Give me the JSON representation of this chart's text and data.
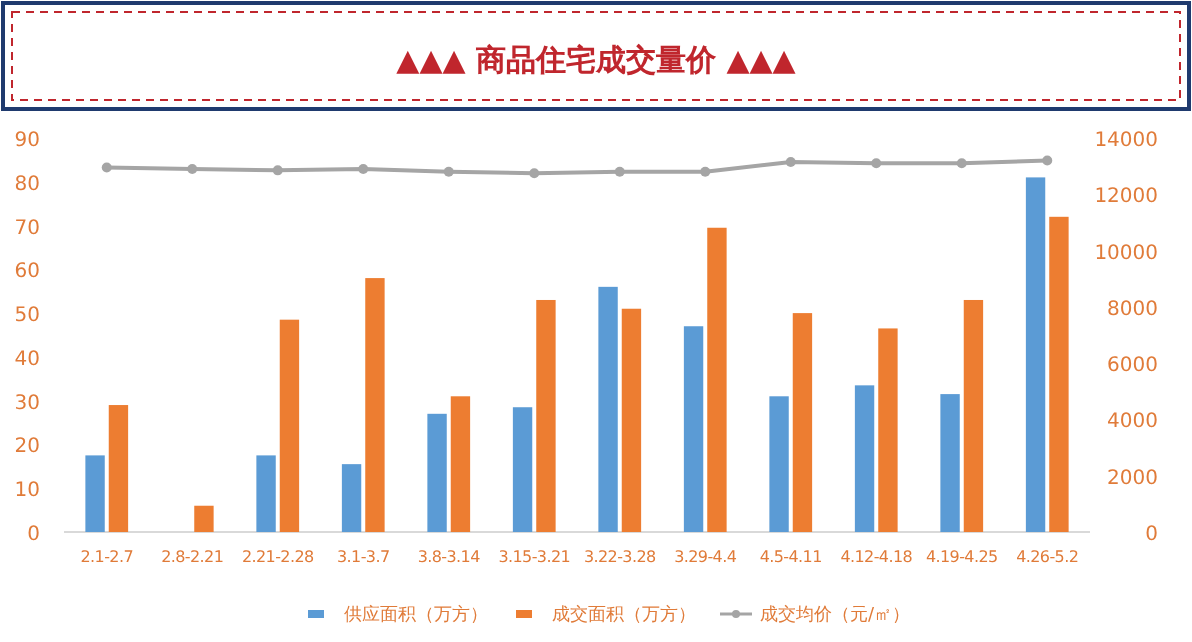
{
  "chart_data": {
    "type": "bar",
    "title": "▲▲▲  商品住宅成交量价  ▲▲▲",
    "categories": [
      "2.1-2.7",
      "2.8-2.21",
      "2.21-2.28",
      "3.1-3.7",
      "3.8-3.14",
      "3.15-3.21",
      "3.22-3.28",
      "3.29-4.4",
      "4.5-4.11",
      "4.12-4.18",
      "4.19-4.25",
      "4.26-5.2"
    ],
    "series": [
      {
        "name": "供应面积（万方）",
        "color": "#5b9bd5",
        "values": [
          17.5,
          null,
          17.5,
          15.5,
          27,
          28.5,
          56,
          47,
          31,
          33.5,
          31.5,
          81
        ]
      },
      {
        "name": "成交面积（万方）",
        "color": "#ed7d31",
        "values": [
          29,
          6,
          48.5,
          58,
          31,
          53,
          51,
          69.5,
          50,
          46.5,
          53,
          72
        ]
      },
      {
        "name": "成交均价（元/㎡）",
        "color": "#a5a5a5",
        "type": "line",
        "axis": "y2",
        "marker": "circle",
        "values": [
          12950,
          12900,
          12850,
          12900,
          12800,
          12750,
          12800,
          12800,
          13150,
          13100,
          13100,
          13200
        ]
      }
    ],
    "ylim": [
      0,
      90
    ],
    "yticks": [
      0,
      10,
      20,
      30,
      40,
      50,
      60,
      70,
      80,
      90
    ],
    "y2lim": [
      0,
      14000
    ],
    "y2ticks": [
      0,
      2000,
      4000,
      6000,
      8000,
      10000,
      12000,
      14000
    ],
    "grid": false,
    "legend": "bottom"
  }
}
